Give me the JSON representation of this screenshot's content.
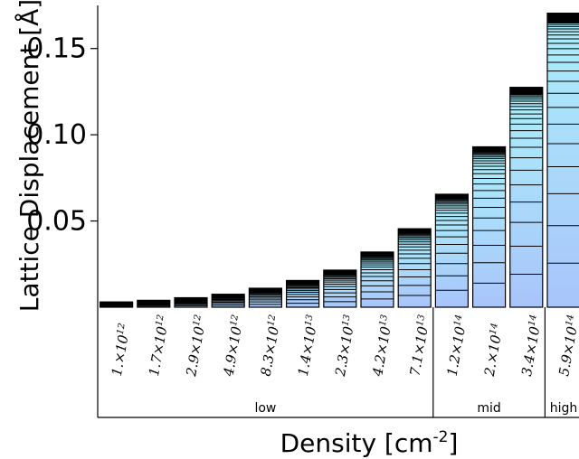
{
  "chart_data": {
    "type": "bar",
    "stacked": true,
    "categories": [
      "1.×10^12",
      "1.7×10^12",
      "2.9×10^12",
      "4.9×10^12",
      "8.3×10^12",
      "1.4×10^13",
      "2.3×10^13",
      "4.2×10^13",
      "7.1×10^13",
      "1.2×10^14",
      "2.×10^14",
      "3.4×10^14",
      "5.9×10^14"
    ],
    "category_parts": [
      {
        "mantissa": "1.",
        "exp": "12"
      },
      {
        "mantissa": "1.7",
        "exp": "12"
      },
      {
        "mantissa": "2.9",
        "exp": "12"
      },
      {
        "mantissa": "4.9",
        "exp": "12"
      },
      {
        "mantissa": "8.3",
        "exp": "12"
      },
      {
        "mantissa": "1.4",
        "exp": "13"
      },
      {
        "mantissa": "2.3",
        "exp": "13"
      },
      {
        "mantissa": "4.2",
        "exp": "13"
      },
      {
        "mantissa": "7.1",
        "exp": "13"
      },
      {
        "mantissa": "1.2",
        "exp": "14"
      },
      {
        "mantissa": "2.",
        "exp": "14"
      },
      {
        "mantissa": "3.4",
        "exp": "14"
      },
      {
        "mantissa": "5.9",
        "exp": "14"
      }
    ],
    "values": [
      0.003,
      0.004,
      0.0055,
      0.0075,
      0.011,
      0.0155,
      0.0215,
      0.032,
      0.0455,
      0.0655,
      0.093,
      0.1275,
      0.1705
    ],
    "segment_fraction_ratio": 0.85,
    "ylabel": "Lattice Displacement [Å]",
    "xlabel": "Density [cm",
    "xlabel_sup": "-2",
    "xlabel_close": "]",
    "yticks": [
      0.05,
      0.1,
      0.15
    ],
    "ytick_labels": [
      "0.05",
      "0.10",
      "0.15"
    ],
    "ylim": [
      0,
      0.175
    ],
    "groups": [
      {
        "label": "low",
        "from": 0,
        "to": 8
      },
      {
        "label": "mid",
        "from": 9,
        "to": 11
      },
      {
        "label": "high",
        "from": 12,
        "to": 12
      }
    ],
    "colors": {
      "fill_light": "#a9c4fb",
      "fill_dark": "#aadcfa",
      "top": "#000000"
    }
  }
}
